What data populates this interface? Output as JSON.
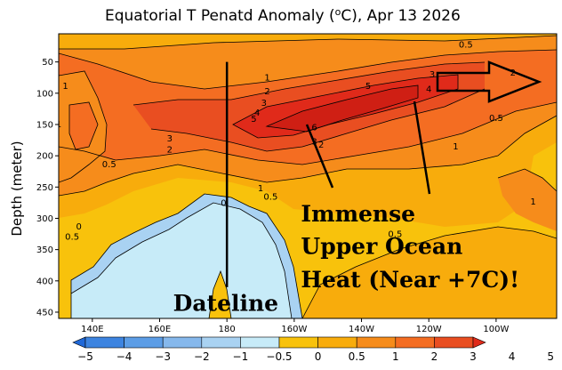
{
  "chart_data": {
    "type": "heatmap",
    "title": "Equatorial T Penatd Anomaly (°C), Apr 13 2026",
    "title_main": "Equatorial T Penatd Anomaly (",
    "title_unit": "C), Apr 13 2026",
    "title_degree": "o",
    "xlabel": "",
    "ylabel": "Depth (meter)",
    "x_ticks": [
      "140E",
      "160E",
      "180",
      "160W",
      "140W",
      "120W",
      "100W"
    ],
    "x_tick_lon": [
      140,
      160,
      180,
      200,
      220,
      240,
      260
    ],
    "x_range_lon": [
      130,
      278
    ],
    "y_ticks": [
      50,
      100,
      150,
      200,
      250,
      300,
      350,
      400,
      450
    ],
    "y_range": [
      5,
      460
    ],
    "contour_levels": [
      -5,
      -4,
      -3,
      -2,
      -1,
      -0.5,
      0,
      0.5,
      1,
      2,
      3,
      4,
      5
    ],
    "colorbar_labels": [
      "−5",
      "−4",
      "−3",
      "−2",
      "−1",
      "−0.5",
      "0",
      "0.5",
      "1",
      "2",
      "3",
      "4",
      "5"
    ],
    "colors": [
      "#1f68d8",
      "#3d84e0",
      "#5c9de6",
      "#86b8ec",
      "#a9d2f2",
      "#c7ebf8",
      "#f8c20c",
      "#f8ac0c",
      "#f68c1b",
      "#f46d22",
      "#e94e21",
      "#e02a1a"
    ],
    "bands_at_longitude": [
      {
        "lon": 130,
        "levels": [
          2,
          1,
          0.5,
          0,
          -0.5
        ]
      },
      {
        "lon": 180,
        "levels": [
          0.5,
          1,
          2,
          1,
          0.5,
          0,
          -0.5
        ]
      },
      {
        "lon": 215,
        "levels": [
          1,
          2,
          3,
          4,
          5,
          6,
          3,
          1,
          0.5
        ]
      },
      {
        "lon": 260,
        "levels": [
          2,
          1,
          0.5,
          1
        ]
      }
    ],
    "contour_labels": [
      {
        "text": "0.5",
        "lon": 251,
        "depth": 27
      },
      {
        "text": "1",
        "lon": 132,
        "depth": 93
      },
      {
        "text": "1",
        "lon": 192,
        "depth": 80
      },
      {
        "text": "2",
        "lon": 192,
        "depth": 102
      },
      {
        "text": "3",
        "lon": 191,
        "depth": 120
      },
      {
        "text": "4",
        "lon": 189,
        "depth": 136
      },
      {
        "text": "5",
        "lon": 188,
        "depth": 146
      },
      {
        "text": "5",
        "lon": 222,
        "depth": 93
      },
      {
        "text": "6",
        "lon": 206,
        "depth": 159
      },
      {
        "text": "3",
        "lon": 206,
        "depth": 182
      },
      {
        "text": "2",
        "lon": 208,
        "depth": 187
      },
      {
        "text": "3",
        "lon": 241,
        "depth": 75
      },
      {
        "text": "4",
        "lon": 240,
        "depth": 98
      },
      {
        "text": "2",
        "lon": 265,
        "depth": 72
      },
      {
        "text": "0.5",
        "lon": 260,
        "depth": 144
      },
      {
        "text": "1",
        "lon": 248,
        "depth": 190
      },
      {
        "text": "1",
        "lon": 271,
        "depth": 278
      },
      {
        "text": "1",
        "lon": 130,
        "depth": 154
      },
      {
        "text": "3",
        "lon": 163,
        "depth": 177
      },
      {
        "text": "2",
        "lon": 163,
        "depth": 195
      },
      {
        "text": "0.5",
        "lon": 145,
        "depth": 218
      },
      {
        "text": "1",
        "lon": 190,
        "depth": 257
      },
      {
        "text": "0.5",
        "lon": 193,
        "depth": 270
      },
      {
        "text": "0",
        "lon": 179,
        "depth": 280
      },
      {
        "text": "0",
        "lon": 136,
        "depth": 318
      },
      {
        "text": "0.5",
        "lon": 134,
        "depth": 334
      },
      {
        "text": "0.5",
        "lon": 230,
        "depth": 330
      }
    ],
    "annotations": [
      {
        "text": "Immense",
        "lon": 202,
        "depth": 305
      },
      {
        "text": "Upper Ocean",
        "lon": 202,
        "depth": 357
      },
      {
        "text": "Heat (Near +7C)!",
        "lon": 202,
        "depth": 410
      },
      {
        "text": "Dateline",
        "lon": 164,
        "depth": 448
      }
    ],
    "arrow": "eastward arrow at ~100m depth from ~232 to ~275 longitude",
    "dateline_marker": {
      "lon": 180,
      "depth_from": 50,
      "depth_to": 410
    }
  }
}
